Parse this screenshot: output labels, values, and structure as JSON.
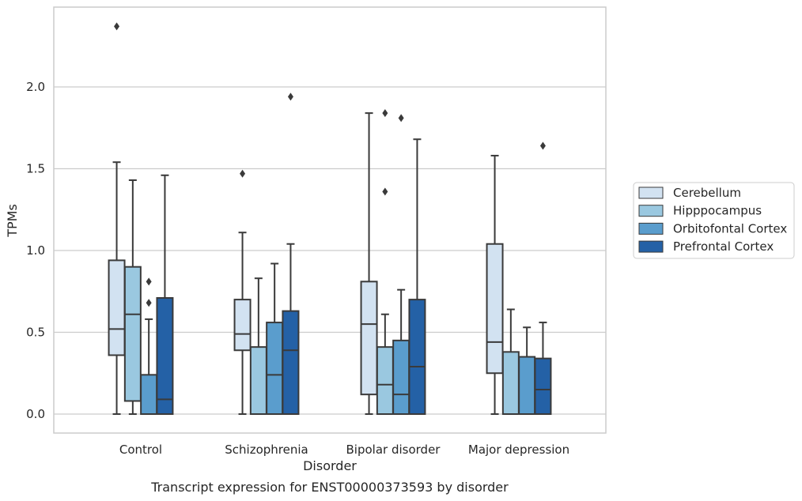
{
  "chart_data": {
    "type": "box",
    "xlabel": "Disorder",
    "ylabel": "TPMs",
    "caption": "Transcript expression for ENST00000373593 by disorder",
    "ylim": [
      -0.12,
      2.5
    ],
    "yticks": [
      0.0,
      0.5,
      1.0,
      1.5,
      2.0
    ],
    "ytick_labels": [
      "0.0",
      "0.5",
      "1.0",
      "1.5",
      "2.0"
    ],
    "grid": "horizontal",
    "legend_position": "right",
    "categories": [
      "Control",
      "Schizophrenia",
      "Bipolar disorder",
      "Major depression"
    ],
    "series": [
      {
        "name": "Cerebellum",
        "color": "#d2e2f1",
        "boxes": [
          {
            "whislo": 0.0,
            "q1": 0.36,
            "med": 0.52,
            "q3": 0.94,
            "whishi": 1.54,
            "fliers": [
              2.37
            ]
          },
          {
            "whislo": 0.0,
            "q1": 0.39,
            "med": 0.49,
            "q3": 0.7,
            "whishi": 1.11,
            "fliers": [
              1.47
            ]
          },
          {
            "whislo": 0.0,
            "q1": 0.12,
            "med": 0.55,
            "q3": 0.81,
            "whishi": 1.84,
            "fliers": []
          },
          {
            "whislo": 0.0,
            "q1": 0.25,
            "med": 0.44,
            "q3": 1.04,
            "whishi": 1.58,
            "fliers": []
          }
        ]
      },
      {
        "name": "Hipppocampus",
        "color": "#9ac8e0",
        "boxes": [
          {
            "whislo": 0.0,
            "q1": 0.08,
            "med": 0.61,
            "q3": 0.9,
            "whishi": 1.43,
            "fliers": []
          },
          {
            "whislo": 0.0,
            "q1": 0.0,
            "med": 0.0,
            "q3": 0.41,
            "whishi": 0.83,
            "fliers": []
          },
          {
            "whislo": 0.0,
            "q1": 0.0,
            "med": 0.18,
            "q3": 0.41,
            "whishi": 0.61,
            "fliers": [
              1.36,
              1.84
            ]
          },
          {
            "whislo": 0.0,
            "q1": 0.0,
            "med": 0.0,
            "q3": 0.38,
            "whishi": 0.64,
            "fliers": []
          }
        ]
      },
      {
        "name": "Orbitofontal Cortex",
        "color": "#5a9dcd",
        "boxes": [
          {
            "whislo": 0.0,
            "q1": 0.0,
            "med": 0.0,
            "q3": 0.24,
            "whishi": 0.58,
            "fliers": [
              0.68,
              0.81
            ]
          },
          {
            "whislo": 0.0,
            "q1": 0.0,
            "med": 0.24,
            "q3": 0.56,
            "whishi": 0.92,
            "fliers": []
          },
          {
            "whislo": 0.0,
            "q1": 0.0,
            "med": 0.12,
            "q3": 0.45,
            "whishi": 0.76,
            "fliers": [
              1.81
            ]
          },
          {
            "whislo": 0.0,
            "q1": 0.0,
            "med": 0.0,
            "q3": 0.35,
            "whishi": 0.53,
            "fliers": []
          }
        ]
      },
      {
        "name": "Prefrontal Cortex",
        "color": "#2461a6",
        "boxes": [
          {
            "whislo": 0.0,
            "q1": 0.0,
            "med": 0.09,
            "q3": 0.71,
            "whishi": 1.46,
            "fliers": []
          },
          {
            "whislo": 0.0,
            "q1": 0.0,
            "med": 0.39,
            "q3": 0.63,
            "whishi": 1.04,
            "fliers": [
              1.94
            ]
          },
          {
            "whislo": 0.0,
            "q1": 0.0,
            "med": 0.29,
            "q3": 0.7,
            "whishi": 1.68,
            "fliers": []
          },
          {
            "whislo": 0.0,
            "q1": 0.0,
            "med": 0.15,
            "q3": 0.34,
            "whishi": 0.56,
            "fliers": [
              1.64
            ]
          }
        ]
      }
    ]
  }
}
